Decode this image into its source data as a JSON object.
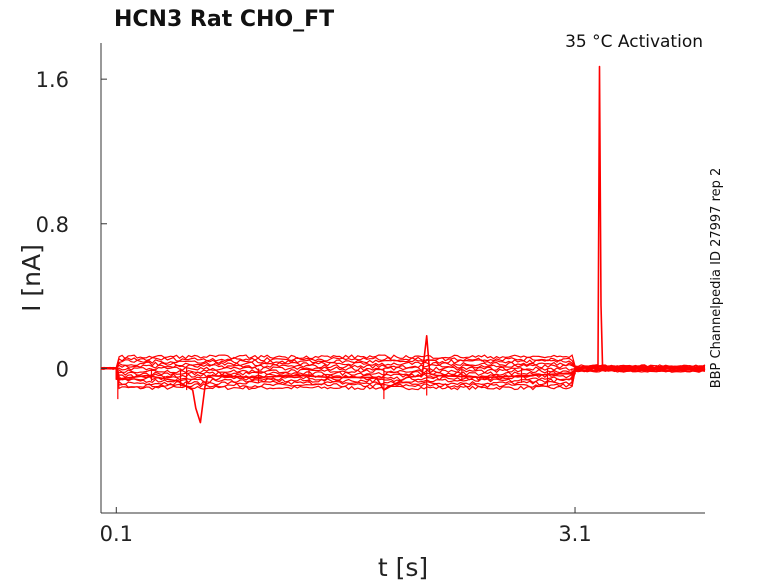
{
  "chart_data": {
    "type": "line",
    "title": "HCN3  Rat  CHO_FT",
    "annotation": "35 °C  Activation",
    "side_label": "BBP Channelpedia ID 27997 rep 2",
    "xlabel": "t [s]",
    "ylabel": "I [nA]",
    "xlim": [
      0.0,
      3.95
    ],
    "ylim": [
      -0.8,
      1.8
    ],
    "x_ticks": [
      {
        "value": 0.1,
        "label": "0.1"
      },
      {
        "value": 3.1,
        "label": "3.1"
      }
    ],
    "y_ticks": [
      {
        "value": 1.6,
        "label": "1.6"
      },
      {
        "value": 0.8,
        "label": "0.8"
      },
      {
        "value": 0,
        "label": "0"
      }
    ],
    "color": "#ff0000",
    "grid": false,
    "series": [
      {
        "values_approx": "sweep traces",
        "x": [
          0.0,
          0.1,
          0.1,
          0.3,
          0.5,
          0.6,
          0.62,
          0.65,
          0.68,
          0.7,
          1.0,
          1.3,
          1.5,
          1.8,
          1.85,
          2.0,
          2.1,
          2.13,
          2.15,
          2.2,
          2.5,
          2.8,
          3.0,
          3.1,
          3.1,
          3.25,
          3.26,
          3.27,
          3.28,
          3.3,
          3.6
        ],
        "y": [
          0.0,
          0.0,
          -0.06,
          -0.04,
          -0.07,
          -0.12,
          -0.22,
          -0.3,
          -0.1,
          -0.04,
          -0.05,
          -0.04,
          -0.05,
          -0.05,
          -0.12,
          -0.05,
          -0.04,
          0.18,
          -0.03,
          -0.04,
          -0.05,
          -0.04,
          -0.03,
          -0.03,
          0.0,
          0.02,
          1.67,
          0.35,
          0.02,
          0.01,
          0.0
        ]
      }
    ]
  }
}
